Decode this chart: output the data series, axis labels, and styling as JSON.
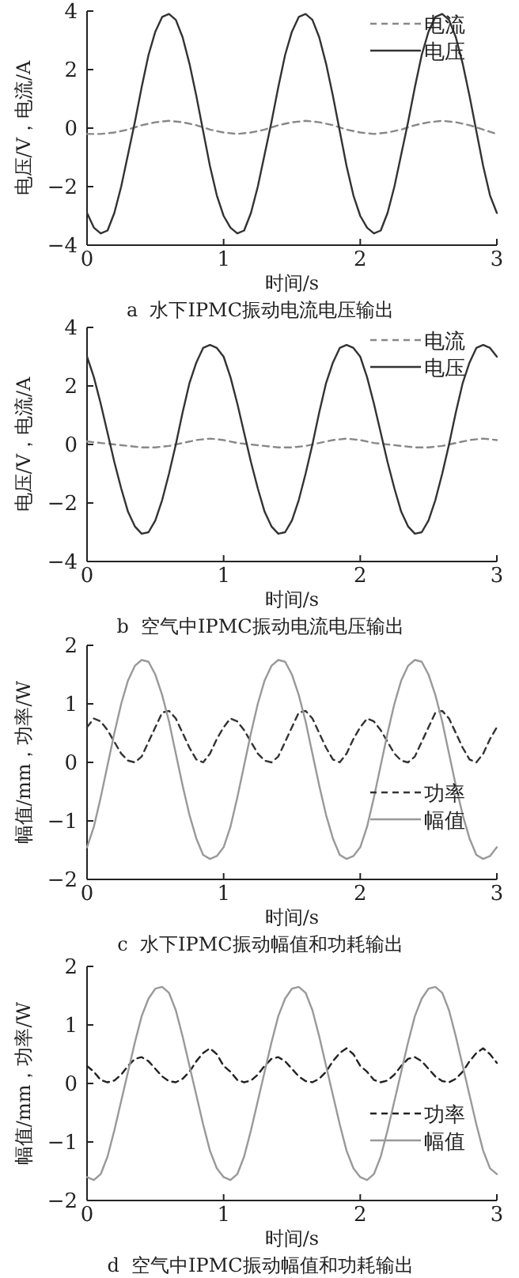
{
  "chart_data": [
    {
      "type": "line",
      "title": "a  水下IPMC振动电流电压输出",
      "xlabel": "时间/s",
      "ylabel": "电压/V，电流/A",
      "xlim": [
        0,
        3
      ],
      "xticks": [
        0,
        1,
        2,
        3
      ],
      "ylim": [
        -4,
        4
      ],
      "yticks": [
        -4,
        -2,
        0,
        2,
        4
      ],
      "legend": "top right",
      "x": [
        0,
        0.05,
        0.1,
        0.15,
        0.2,
        0.25,
        0.3,
        0.35,
        0.4,
        0.45,
        0.5,
        0.55,
        0.6,
        0.65,
        0.7,
        0.75,
        0.8,
        0.85,
        0.9,
        0.95,
        1,
        1.05,
        1.1,
        1.15,
        1.2,
        1.25,
        1.3,
        1.35,
        1.4,
        1.45,
        1.5,
        1.55,
        1.6,
        1.65,
        1.7,
        1.75,
        1.8,
        1.85,
        1.9,
        1.95,
        2,
        2.05,
        2.1,
        2.15,
        2.2,
        2.25,
        2.3,
        2.35,
        2.4,
        2.45,
        2.5,
        2.55,
        2.6,
        2.65,
        2.7,
        2.75,
        2.8,
        2.85,
        2.9,
        2.95,
        3
      ],
      "series": [
        {
          "name": "电流",
          "color": "#888888",
          "line_style": "dashed",
          "x": [
            0,
            0.1,
            0.2,
            0.3,
            0.4,
            0.5,
            0.6,
            0.7,
            0.8,
            0.9,
            1,
            1.1,
            1.2,
            1.3,
            1.4,
            1.5,
            1.6,
            1.7,
            1.8,
            1.9,
            2,
            2.1,
            2.2,
            2.3,
            2.4,
            2.5,
            2.6,
            2.7,
            2.8,
            2.9,
            3
          ],
          "values": [
            -0.2,
            -0.2,
            -0.15,
            -0.05,
            0.1,
            0.2,
            0.25,
            0.2,
            0.1,
            -0.05,
            -0.15,
            -0.2,
            -0.15,
            -0.05,
            0.1,
            0.2,
            0.25,
            0.2,
            0.1,
            -0.05,
            -0.15,
            -0.2,
            -0.15,
            -0.05,
            0.1,
            0.2,
            0.25,
            0.2,
            0.1,
            -0.05,
            -0.2
          ]
        },
        {
          "name": "电压",
          "color": "#333333",
          "line_style": "solid",
          "values": [
            -2.9,
            -3.4,
            -3.6,
            -3.5,
            -2.9,
            -2.0,
            -0.9,
            0.2,
            1.4,
            2.5,
            3.3,
            3.8,
            3.9,
            3.7,
            3.1,
            2.2,
            1.1,
            -0.1,
            -1.3,
            -2.3,
            -3.0,
            -3.4,
            -3.6,
            -3.5,
            -2.9,
            -2.0,
            -0.9,
            0.2,
            1.4,
            2.5,
            3.3,
            3.8,
            3.9,
            3.7,
            3.1,
            2.2,
            1.1,
            -0.1,
            -1.3,
            -2.3,
            -3.0,
            -3.4,
            -3.6,
            -3.5,
            -2.9,
            -2.0,
            -0.9,
            0.2,
            1.4,
            2.5,
            3.3,
            3.8,
            3.9,
            3.7,
            3.1,
            2.2,
            1.1,
            -0.1,
            -1.3,
            -2.3,
            -2.9
          ]
        }
      ]
    },
    {
      "type": "line",
      "title": "b  空气中IPMC振动电流电压输出",
      "xlabel": "时间/s",
      "ylabel": "电压/V，电流/A",
      "xlim": [
        0,
        3
      ],
      "xticks": [
        0,
        1,
        2,
        3
      ],
      "ylim": [
        -4,
        4
      ],
      "yticks": [
        -4,
        -2,
        0,
        2,
        4
      ],
      "legend": "top right",
      "x": [
        0,
        0.05,
        0.1,
        0.15,
        0.2,
        0.25,
        0.3,
        0.35,
        0.4,
        0.45,
        0.5,
        0.55,
        0.6,
        0.65,
        0.7,
        0.75,
        0.8,
        0.85,
        0.9,
        0.95,
        1,
        1.05,
        1.1,
        1.15,
        1.2,
        1.25,
        1.3,
        1.35,
        1.4,
        1.45,
        1.5,
        1.55,
        1.6,
        1.65,
        1.7,
        1.75,
        1.8,
        1.85,
        1.9,
        1.95,
        2,
        2.05,
        2.1,
        2.15,
        2.2,
        2.25,
        2.3,
        2.35,
        2.4,
        2.45,
        2.5,
        2.55,
        2.6,
        2.65,
        2.7,
        2.75,
        2.8,
        2.85,
        2.9,
        2.95,
        3
      ],
      "series": [
        {
          "name": "电流",
          "color": "#888888",
          "line_style": "dashed",
          "x": [
            0,
            0.1,
            0.2,
            0.3,
            0.4,
            0.5,
            0.6,
            0.7,
            0.8,
            0.9,
            1,
            1.1,
            1.2,
            1.3,
            1.4,
            1.5,
            1.6,
            1.7,
            1.8,
            1.9,
            2,
            2.1,
            2.2,
            2.3,
            2.4,
            2.5,
            2.6,
            2.7,
            2.8,
            2.9,
            3
          ],
          "values": [
            0.1,
            0.05,
            0.0,
            -0.05,
            -0.1,
            -0.1,
            -0.05,
            0.05,
            0.15,
            0.2,
            0.15,
            0.05,
            0.0,
            -0.05,
            -0.1,
            -0.1,
            -0.05,
            0.05,
            0.15,
            0.2,
            0.15,
            0.05,
            0.0,
            -0.05,
            -0.1,
            -0.1,
            -0.05,
            0.05,
            0.15,
            0.2,
            0.15
          ]
        },
        {
          "name": "电压",
          "color": "#333333",
          "line_style": "solid",
          "values": [
            3.0,
            2.3,
            1.4,
            0.4,
            -0.6,
            -1.5,
            -2.3,
            -2.8,
            -3.05,
            -3.0,
            -2.6,
            -1.9,
            -1.0,
            0.0,
            1.1,
            2.1,
            2.8,
            3.3,
            3.4,
            3.3,
            3.0,
            2.3,
            1.4,
            0.4,
            -0.6,
            -1.5,
            -2.3,
            -2.8,
            -3.05,
            -3.0,
            -2.6,
            -1.9,
            -1.0,
            0.0,
            1.1,
            2.1,
            2.8,
            3.3,
            3.4,
            3.3,
            3.0,
            2.3,
            1.4,
            0.4,
            -0.6,
            -1.5,
            -2.3,
            -2.8,
            -3.05,
            -3.0,
            -2.6,
            -1.9,
            -1.0,
            0.0,
            1.1,
            2.1,
            2.8,
            3.3,
            3.4,
            3.3,
            3.0
          ]
        }
      ]
    },
    {
      "type": "line",
      "title": "c  水下IPMC振动幅值和功耗输出",
      "xlabel": "时间/s",
      "ylabel": "幅值/mm，功率/W",
      "xlim": [
        0,
        3
      ],
      "xticks": [
        0,
        1,
        2,
        3
      ],
      "ylim": [
        -2,
        2
      ],
      "yticks": [
        -2,
        -1,
        0,
        1,
        2
      ],
      "legend": "bottom right",
      "x": [
        0,
        0.05,
        0.1,
        0.15,
        0.2,
        0.25,
        0.3,
        0.35,
        0.4,
        0.45,
        0.5,
        0.55,
        0.6,
        0.65,
        0.7,
        0.75,
        0.8,
        0.85,
        0.9,
        0.95,
        1,
        1.05,
        1.1,
        1.15,
        1.2,
        1.25,
        1.3,
        1.35,
        1.4,
        1.45,
        1.5,
        1.55,
        1.6,
        1.65,
        1.7,
        1.75,
        1.8,
        1.85,
        1.9,
        1.95,
        2,
        2.05,
        2.1,
        2.15,
        2.2,
        2.25,
        2.3,
        2.35,
        2.4,
        2.45,
        2.5,
        2.55,
        2.6,
        2.65,
        2.7,
        2.75,
        2.8,
        2.85,
        2.9,
        2.95,
        3
      ],
      "series": [
        {
          "name": "功率",
          "color": "#333333",
          "line_style": "dashed",
          "values": [
            0.6,
            0.75,
            0.7,
            0.55,
            0.35,
            0.15,
            0.03,
            0.0,
            0.1,
            0.35,
            0.6,
            0.85,
            0.88,
            0.75,
            0.5,
            0.25,
            0.05,
            0.0,
            0.15,
            0.4,
            0.6,
            0.75,
            0.7,
            0.55,
            0.35,
            0.15,
            0.03,
            0.0,
            0.1,
            0.35,
            0.6,
            0.85,
            0.88,
            0.75,
            0.5,
            0.25,
            0.05,
            0.0,
            0.15,
            0.4,
            0.6,
            0.75,
            0.7,
            0.55,
            0.35,
            0.15,
            0.03,
            0.0,
            0.1,
            0.35,
            0.6,
            0.85,
            0.88,
            0.75,
            0.5,
            0.25,
            0.05,
            0.0,
            0.15,
            0.4,
            0.6
          ]
        },
        {
          "name": "幅值",
          "color": "#999999",
          "line_style": "solid",
          "values": [
            -1.45,
            -1.1,
            -0.6,
            -0.05,
            0.5,
            1.0,
            1.4,
            1.65,
            1.75,
            1.72,
            1.5,
            1.15,
            0.7,
            0.15,
            -0.4,
            -0.9,
            -1.3,
            -1.58,
            -1.65,
            -1.6,
            -1.45,
            -1.1,
            -0.6,
            -0.05,
            0.5,
            1.0,
            1.4,
            1.65,
            1.75,
            1.72,
            1.5,
            1.15,
            0.7,
            0.15,
            -0.4,
            -0.9,
            -1.3,
            -1.58,
            -1.65,
            -1.6,
            -1.45,
            -1.1,
            -0.6,
            -0.05,
            0.5,
            1.0,
            1.4,
            1.65,
            1.75,
            1.72,
            1.5,
            1.15,
            0.7,
            0.15,
            -0.4,
            -0.9,
            -1.3,
            -1.58,
            -1.65,
            -1.6,
            -1.45
          ]
        }
      ]
    },
    {
      "type": "line",
      "title": "d  空气中IPMC振动幅值和功耗输出",
      "xlabel": "时间/s",
      "ylabel": "幅值/mm，功率/W",
      "xlim": [
        0,
        3
      ],
      "xticks": [
        0,
        1,
        2,
        3
      ],
      "ylim": [
        -2,
        2
      ],
      "yticks": [
        -2,
        -1,
        0,
        1,
        2
      ],
      "legend": "bottom right",
      "x": [
        0,
        0.05,
        0.1,
        0.15,
        0.2,
        0.25,
        0.3,
        0.35,
        0.4,
        0.45,
        0.5,
        0.55,
        0.6,
        0.65,
        0.7,
        0.75,
        0.8,
        0.85,
        0.9,
        0.95,
        1,
        1.05,
        1.1,
        1.15,
        1.2,
        1.25,
        1.3,
        1.35,
        1.4,
        1.45,
        1.5,
        1.55,
        1.6,
        1.65,
        1.7,
        1.75,
        1.8,
        1.85,
        1.9,
        1.95,
        2,
        2.05,
        2.1,
        2.15,
        2.2,
        2.25,
        2.3,
        2.35,
        2.4,
        2.45,
        2.5,
        2.55,
        2.6,
        2.65,
        2.7,
        2.75,
        2.8,
        2.85,
        2.9,
        2.95,
        3
      ],
      "series": [
        {
          "name": "功率",
          "color": "#222222",
          "line_style": "dashed",
          "values": [
            0.3,
            0.2,
            0.06,
            0.02,
            0.05,
            0.15,
            0.3,
            0.42,
            0.45,
            0.38,
            0.25,
            0.12,
            0.04,
            0.02,
            0.08,
            0.2,
            0.38,
            0.52,
            0.6,
            0.5,
            0.3,
            0.2,
            0.06,
            0.02,
            0.05,
            0.15,
            0.3,
            0.42,
            0.45,
            0.38,
            0.25,
            0.12,
            0.04,
            0.02,
            0.08,
            0.2,
            0.38,
            0.52,
            0.6,
            0.5,
            0.3,
            0.2,
            0.06,
            0.02,
            0.05,
            0.15,
            0.3,
            0.42,
            0.45,
            0.38,
            0.25,
            0.12,
            0.04,
            0.02,
            0.08,
            0.2,
            0.38,
            0.52,
            0.6,
            0.5,
            0.35
          ]
        },
        {
          "name": "幅值",
          "color": "#999999",
          "line_style": "solid",
          "values": [
            -1.6,
            -1.65,
            -1.55,
            -1.25,
            -0.8,
            -0.3,
            0.2,
            0.7,
            1.15,
            1.45,
            1.62,
            1.65,
            1.55,
            1.25,
            0.8,
            0.3,
            -0.2,
            -0.7,
            -1.15,
            -1.45,
            -1.6,
            -1.65,
            -1.55,
            -1.25,
            -0.8,
            -0.3,
            0.2,
            0.7,
            1.15,
            1.45,
            1.62,
            1.65,
            1.55,
            1.25,
            0.8,
            0.3,
            -0.2,
            -0.7,
            -1.15,
            -1.45,
            -1.6,
            -1.65,
            -1.55,
            -1.25,
            -0.8,
            -0.3,
            0.2,
            0.7,
            1.15,
            1.45,
            1.62,
            1.65,
            1.55,
            1.25,
            0.8,
            0.3,
            -0.2,
            -0.7,
            -1.15,
            -1.45,
            -1.55
          ]
        }
      ]
    }
  ]
}
